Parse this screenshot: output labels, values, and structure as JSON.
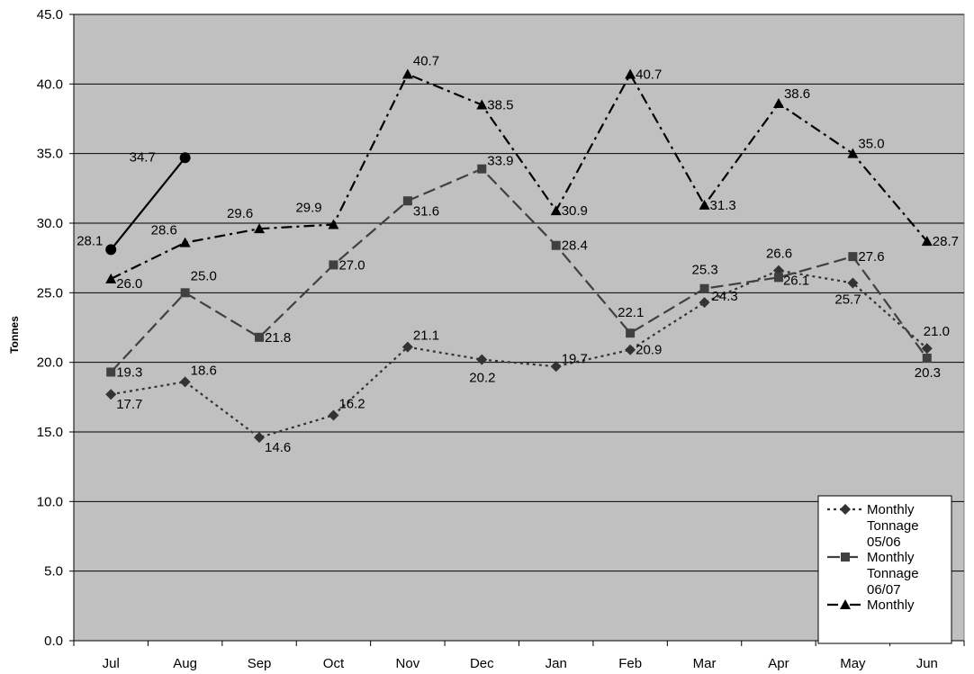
{
  "chart_data": {
    "type": "line",
    "title": "",
    "xlabel": "",
    "ylabel": "Tonnes",
    "ylim": [
      0,
      45
    ],
    "y_step": 5,
    "y_ticks": [
      "0.0",
      "5.0",
      "10.0",
      "15.0",
      "20.0",
      "25.0",
      "30.0",
      "35.0",
      "40.0",
      "45.0"
    ],
    "grid": true,
    "legend_position": "bottom-right",
    "plot_background": "#c0c0c0",
    "categories": [
      "Jul",
      "Aug",
      "Sep",
      "Oct",
      "Nov",
      "Dec",
      "Jan",
      "Feb",
      "Mar",
      "Apr",
      "May",
      "Jun"
    ],
    "series": [
      {
        "name": "Monthly Tonnage 05/06",
        "legend_lines": [
          "Monthly",
          "Tonnage",
          "05/06"
        ],
        "marker": "diamond",
        "dash": "dotted",
        "color": "#333333",
        "values": [
          17.7,
          18.6,
          14.6,
          16.2,
          21.1,
          20.2,
          19.7,
          20.9,
          24.3,
          26.6,
          25.7,
          21.0
        ],
        "labels": [
          "17.7",
          "18.6",
          "14.6",
          "16.2",
          "21.1",
          "20.2",
          "19.7",
          "20.9",
          "24.3",
          "26.6",
          "25.7",
          "21.0"
        ]
      },
      {
        "name": "Monthly Tonnage 06/07",
        "legend_lines": [
          "Monthly",
          "Tonnage",
          "06/07"
        ],
        "marker": "square",
        "dash": "long-dash",
        "color": "#404040",
        "values": [
          19.3,
          25.0,
          21.8,
          27.0,
          31.6,
          33.9,
          28.4,
          22.1,
          25.3,
          26.1,
          27.6,
          20.3
        ],
        "labels": [
          "19.3",
          "25.0",
          "21.8",
          "27.0",
          "31.6",
          "33.9",
          "28.4",
          "22.1",
          "25.3",
          "26.1",
          "27.6",
          "20.3"
        ]
      },
      {
        "name": "Monthly",
        "legend_lines": [
          "Monthly"
        ],
        "marker": "triangle",
        "dash": "dash-dot",
        "color": "#000000",
        "values": [
          26.0,
          28.6,
          29.6,
          29.9,
          40.7,
          38.5,
          30.9,
          40.7,
          31.3,
          38.6,
          35.0,
          28.7
        ],
        "labels": [
          "26.0",
          "28.6",
          "29.6",
          "29.9",
          "40.7",
          "38.5",
          "30.9",
          "40.7",
          "31.3",
          "38.6",
          "35.0",
          "28.7"
        ]
      },
      {
        "name": "",
        "legend_lines": [],
        "marker": "circle",
        "dash": "solid",
        "color": "#000000",
        "values": [
          28.1,
          34.7,
          null,
          null,
          null,
          null,
          null,
          null,
          null,
          null,
          null,
          null
        ],
        "labels": [
          "28.1",
          "34.7",
          "",
          "",
          "",
          "",
          "",
          "",
          "",
          "",
          "",
          ""
        ]
      }
    ]
  }
}
